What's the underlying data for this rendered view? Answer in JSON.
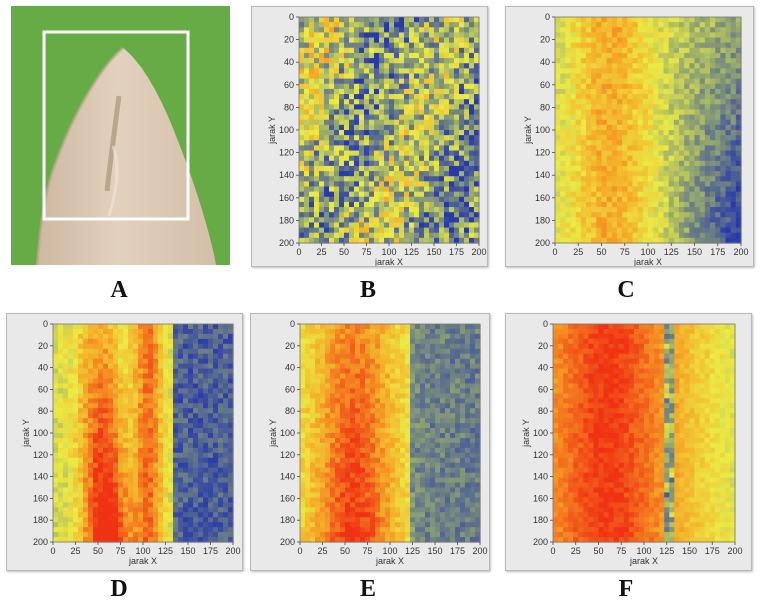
{
  "panels": [
    {
      "id": "A",
      "label": "A",
      "kind": "photo"
    },
    {
      "id": "B",
      "label": "B",
      "kind": "heatmap",
      "pattern": "noise"
    },
    {
      "id": "C",
      "label": "C",
      "kind": "heatmap",
      "pattern": "leftwarm"
    },
    {
      "id": "D",
      "label": "D",
      "kind": "heatmap",
      "pattern": "twobands"
    },
    {
      "id": "E",
      "label": "E",
      "kind": "heatmap",
      "pattern": "broad"
    },
    {
      "id": "F",
      "label": "F",
      "kind": "heatmap",
      "pattern": "hot"
    }
  ],
  "colors": {
    "leaf_green": "#6bb04a",
    "leaf_tissue": "#d9c6b0",
    "box": "#ffffff",
    "low": "#2a3ca8",
    "mid": "#e8e84a",
    "high": "#f03c10"
  },
  "chart_data": [
    {
      "type": "heatmap",
      "panel": "B",
      "xlabel": "jarak X",
      "ylabel": "jarak Y",
      "xlim": [
        0,
        200
      ],
      "ylim": [
        0,
        200
      ],
      "x_ticks": [
        "0",
        "25",
        "50",
        "75",
        "100",
        "125",
        "150",
        "175",
        "200"
      ],
      "y_ticks": [
        "0",
        "20",
        "40",
        "60",
        "80",
        "100",
        "120",
        "140",
        "160",
        "180",
        "200"
      ]
    },
    {
      "type": "heatmap",
      "panel": "C",
      "xlabel": "jarak X",
      "ylabel": "jarak Y",
      "xlim": [
        0,
        200
      ],
      "ylim": [
        0,
        200
      ],
      "x_ticks": [
        "0",
        "25",
        "50",
        "75",
        "100",
        "125",
        "150",
        "175",
        "200"
      ],
      "y_ticks": [
        "0",
        "20",
        "40",
        "60",
        "80",
        "100",
        "120",
        "140",
        "160",
        "180",
        "200"
      ]
    },
    {
      "type": "heatmap",
      "panel": "D",
      "xlabel": "jarak X",
      "ylabel": "jarak Y",
      "xlim": [
        0,
        200
      ],
      "ylim": [
        0,
        200
      ],
      "x_ticks": [
        "0",
        "25",
        "50",
        "75",
        "100",
        "125",
        "150",
        "175",
        "200"
      ],
      "y_ticks": [
        "0",
        "20",
        "40",
        "60",
        "80",
        "100",
        "120",
        "140",
        "160",
        "180",
        "200"
      ]
    },
    {
      "type": "heatmap",
      "panel": "E",
      "xlabel": "jarak X",
      "ylabel": "jarak Y",
      "xlim": [
        0,
        200
      ],
      "ylim": [
        0,
        200
      ],
      "x_ticks": [
        "0",
        "25",
        "50",
        "75",
        "100",
        "125",
        "150",
        "175",
        "200"
      ],
      "y_ticks": [
        "0",
        "20",
        "40",
        "60",
        "80",
        "100",
        "120",
        "140",
        "160",
        "180",
        "200"
      ]
    },
    {
      "type": "heatmap",
      "panel": "F",
      "xlabel": "jarak X",
      "ylabel": "jarak Y",
      "xlim": [
        0,
        200
      ],
      "ylim": [
        0,
        200
      ],
      "x_ticks": [
        "0",
        "25",
        "50",
        "75",
        "100",
        "125",
        "150",
        "175",
        "200"
      ],
      "y_ticks": [
        "0",
        "20",
        "40",
        "60",
        "80",
        "100",
        "120",
        "140",
        "160",
        "180",
        "200"
      ]
    }
  ]
}
